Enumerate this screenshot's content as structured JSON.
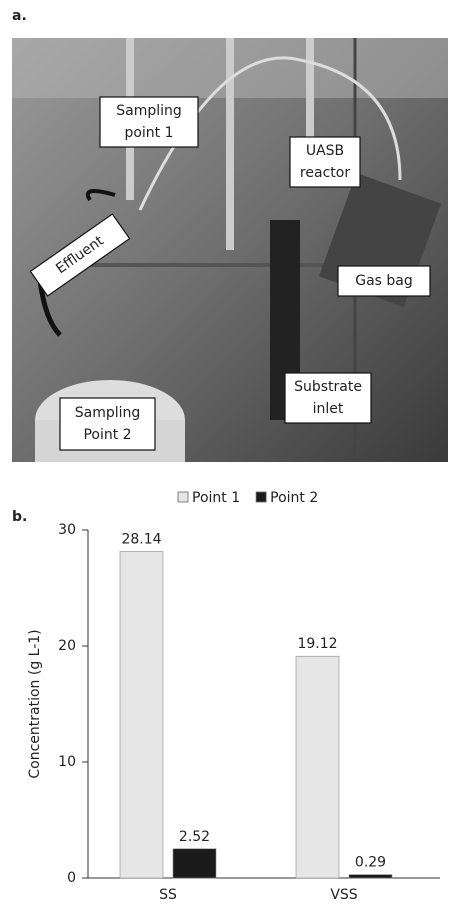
{
  "panel_a": {
    "label": "a.",
    "callouts": [
      {
        "lines": [
          "Sampling",
          "point 1"
        ]
      },
      {
        "lines": [
          "UASB",
          "reactor"
        ]
      },
      {
        "lines": [
          "Effluent"
        ]
      },
      {
        "lines": [
          "Gas bag"
        ]
      },
      {
        "lines": [
          "Substrate",
          "inlet"
        ]
      },
      {
        "lines": [
          "Sampling",
          "Point 2"
        ]
      }
    ]
  },
  "chart_data": {
    "type": "bar",
    "label": "b.",
    "ylabel": "Concentration (g L-1)",
    "categories": [
      "SS",
      "VSS"
    ],
    "series": [
      {
        "name": "Point 1",
        "color": "#e6e6e6",
        "values": [
          28.14,
          19.12
        ]
      },
      {
        "name": "Point 2",
        "color": "#1a1a1a",
        "values": [
          2.52,
          0.29
        ]
      }
    ],
    "ylim": [
      0,
      30
    ],
    "yticks": [
      0,
      10,
      20,
      30
    ]
  }
}
